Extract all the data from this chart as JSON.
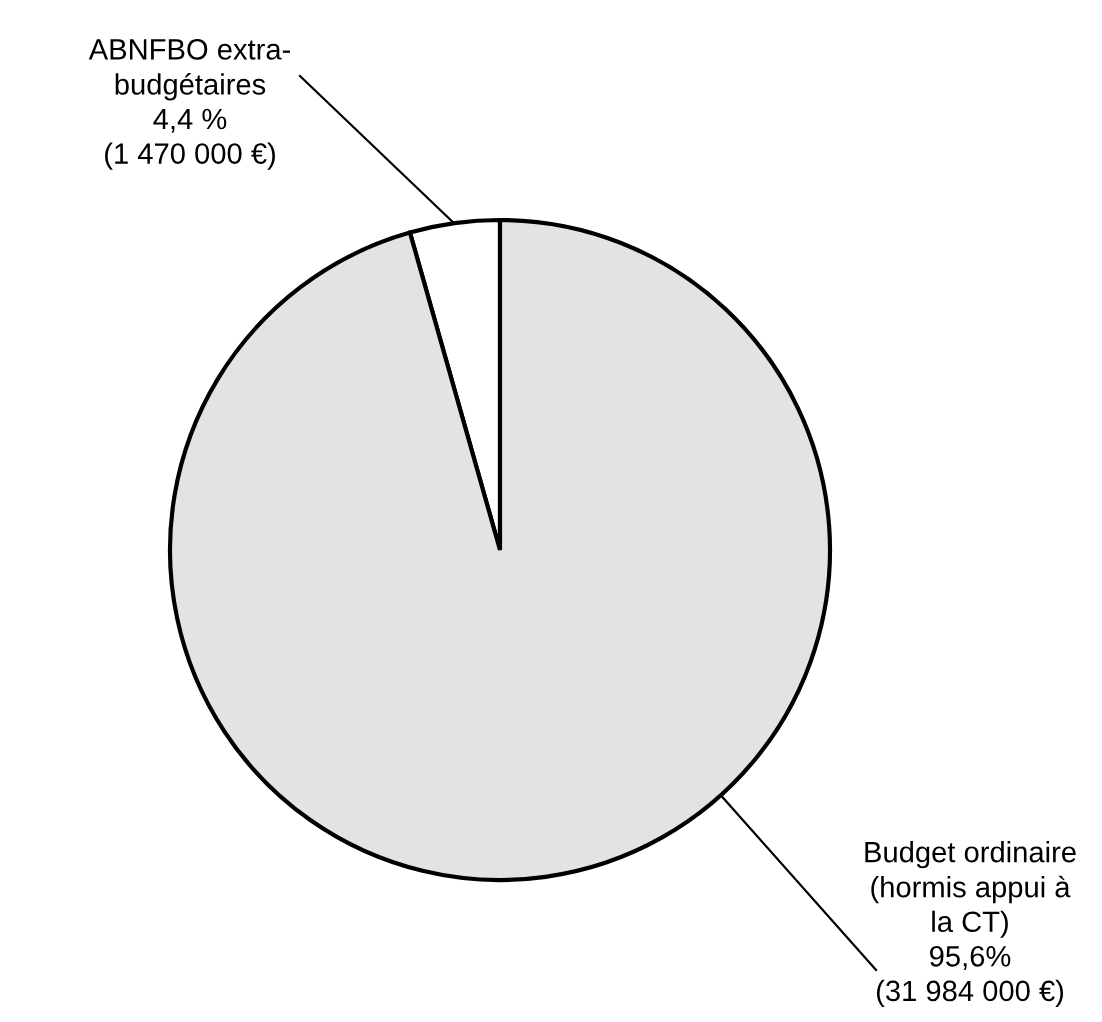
{
  "chart_data": {
    "type": "pie",
    "categories": [
      "ABNFBO extra-\nbudgétaires",
      "Budget ordinaire\n(hormis appui à\nla CT)"
    ],
    "values": [
      4.4,
      95.6
    ],
    "value_labels": [
      "4,4 %\n(1 470 000 €)",
      "95,6%\n(31 984 000 €)"
    ],
    "colors": [
      "#ffffff",
      "#e3e3e3"
    ],
    "legend": false
  }
}
